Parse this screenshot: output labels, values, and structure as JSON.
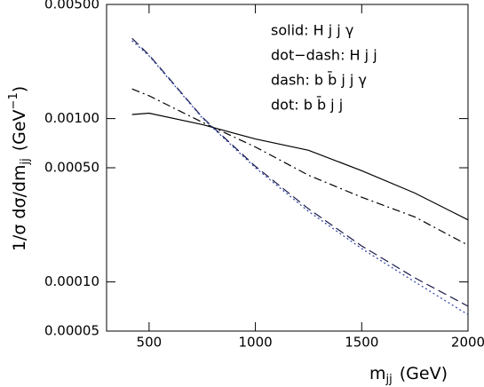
{
  "chart_data": {
    "type": "line",
    "xlabel": [
      "m",
      "jj",
      "(GeV)"
    ],
    "ylabel": [
      "1/σ dσ/dm",
      "jj",
      "(GeV",
      "−1",
      ")"
    ],
    "x": [
      420,
      500,
      750,
      1000,
      1250,
      1500,
      1750,
      2000
    ],
    "xlim": [
      300,
      2000
    ],
    "xticks": [
      500,
      1000,
      1500,
      2000
    ],
    "ylim": [
      5e-05,
      0.005
    ],
    "log_y": true,
    "yticks": [
      {
        "value": 5e-05,
        "label": "0.00005"
      },
      {
        "value": 0.0001,
        "label": "0.00010"
      },
      {
        "value": 0.0005,
        "label": "0.00050"
      },
      {
        "value": 0.001,
        "label": "0.00100"
      },
      {
        "value": 0.005,
        "label": "0.00500"
      }
    ],
    "series": [
      {
        "name": "solid: H j j γ",
        "color": "#000000",
        "style": "solid",
        "values": [
          0.00106,
          0.00108,
          0.00092,
          0.00075,
          0.00064,
          0.00048,
          0.00035,
          0.00024
        ]
      },
      {
        "name": "dot−dash: H j j",
        "color": "#000000",
        "style": "dotdash",
        "values": [
          0.00152,
          0.00138,
          0.00095,
          0.00067,
          0.00045,
          0.00033,
          0.00025,
          0.000168
        ]
      },
      {
        "name": "dash: b b̄ j j γ",
        "color": "#1a1a4a",
        "style": "dash",
        "values": [
          0.0031,
          0.00245,
          0.00102,
          0.00051,
          0.00028,
          0.000166,
          0.000106,
          7.1e-05
        ]
      },
      {
        "name": "dot: b b̄ j j",
        "color": "#2b3fa8",
        "style": "dot",
        "values": [
          0.003,
          0.00242,
          0.00101,
          0.0005,
          0.00027,
          0.00016,
          0.0001,
          6.3e-05
        ]
      }
    ]
  }
}
